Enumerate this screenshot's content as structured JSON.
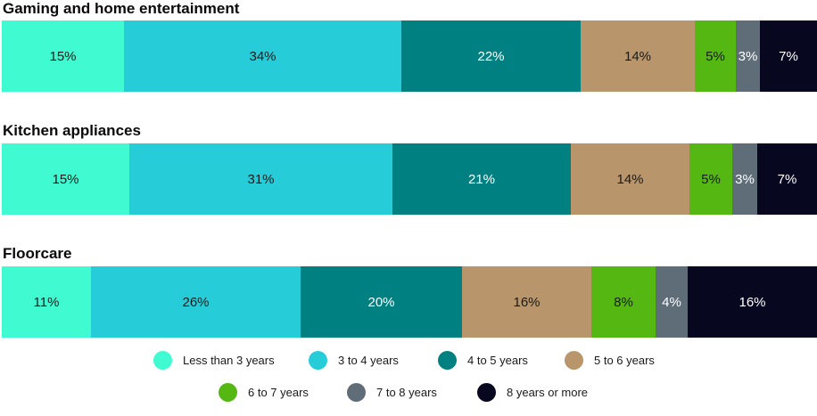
{
  "chart_data": {
    "type": "bar",
    "orientation": "horizontal",
    "stacked": true,
    "normalized_percent": true,
    "categories": [
      "Gaming and home entertainment",
      "Kitchen appliances",
      "Floorcare"
    ],
    "series": [
      {
        "name": "Less than 3 years",
        "color": "#40fad2",
        "values": [
          15,
          15,
          11
        ],
        "labels": [
          "15%",
          "15%",
          "11%"
        ]
      },
      {
        "name": "3 to 4 years",
        "color": "#27ccd9",
        "values": [
          34,
          31,
          26
        ],
        "labels": [
          "34%",
          "31%",
          "26%"
        ]
      },
      {
        "name": "4 to 5 years",
        "color": "#008080",
        "values": [
          22,
          21,
          20
        ],
        "labels": [
          "22%",
          "21%",
          "20%"
        ]
      },
      {
        "name": "5 to 6 years",
        "color": "#b8956a",
        "values": [
          14,
          14,
          16
        ],
        "labels": [
          "14%",
          "14%",
          "16%"
        ]
      },
      {
        "name": "6 to 7 years",
        "color": "#55b812",
        "values": [
          5,
          5,
          8
        ],
        "labels": [
          "5%",
          "5%",
          "8%"
        ]
      },
      {
        "name": "7 to 8 years",
        "color": "#5f6d78",
        "values": [
          3,
          3,
          4
        ],
        "labels": [
          "3%",
          "3%",
          "4%"
        ]
      },
      {
        "name": "8 years or more",
        "color": "#070720",
        "values": [
          7,
          7,
          16
        ],
        "labels": [
          "7%",
          "7%",
          "16%"
        ]
      }
    ],
    "legend_position": "bottom",
    "grid": false
  },
  "text_colors": {
    "light_background": "#1a1a1a",
    "dark_background": "#ffffff"
  }
}
